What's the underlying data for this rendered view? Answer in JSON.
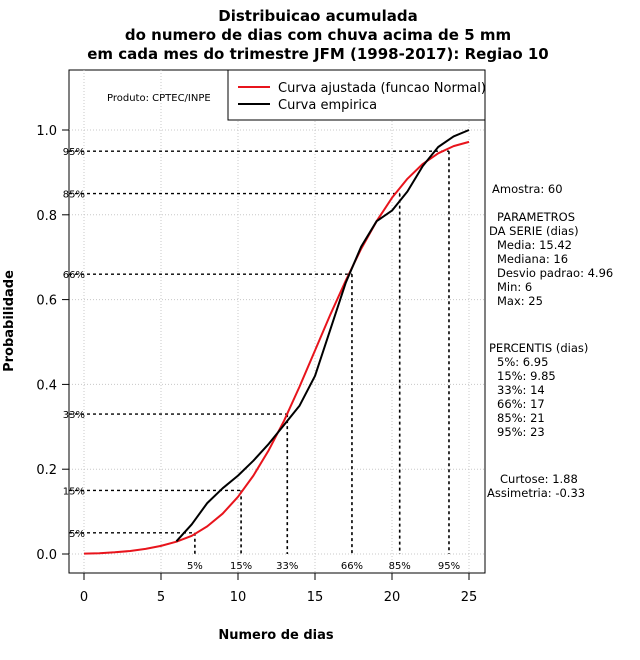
{
  "chart_data": {
    "type": "line",
    "title": [
      "Distribuicao acumulada",
      "do numero de dias com chuva acima de 5 mm",
      "em cada mes do trimestre JFM (1998-2017): Regiao 10"
    ],
    "xlabel": "Numero de dias",
    "ylabel": "Probabilidade",
    "xlim": [
      -1,
      26
    ],
    "ylim": [
      -0.04,
      1.14
    ],
    "xticks": [
      0,
      5,
      10,
      15,
      20,
      25
    ],
    "yticks": [
      0.0,
      0.2,
      0.4,
      0.6,
      0.8,
      1.0
    ],
    "xtick_labels": [
      "0",
      "5",
      "10",
      "15",
      "20",
      "25"
    ],
    "ytick_labels": [
      "0.0",
      "0.2",
      "0.4",
      "0.6",
      "0.8",
      "1.0"
    ],
    "grid": true,
    "legend_position": "top-right",
    "credit": "Produto: CPTEC/INPE",
    "series": [
      {
        "name": "Curva ajustada (funcao Normal)",
        "color": "#e8141c",
        "x": [
          0,
          1,
          2,
          3,
          4,
          5,
          6,
          7,
          8,
          9,
          10,
          11,
          12,
          13,
          14,
          15,
          16,
          17,
          18,
          19,
          20,
          21,
          22,
          23,
          24,
          25
        ],
        "y": [
          0.001,
          0.002,
          0.004,
          0.007,
          0.012,
          0.019,
          0.029,
          0.043,
          0.065,
          0.095,
          0.135,
          0.185,
          0.245,
          0.315,
          0.395,
          0.48,
          0.565,
          0.645,
          0.72,
          0.785,
          0.84,
          0.885,
          0.92,
          0.945,
          0.962,
          0.972
        ]
      },
      {
        "name": "Curva empirica",
        "color": "#000000",
        "x": [
          6,
          7,
          8,
          9,
          10,
          11,
          12,
          13,
          14,
          15,
          16,
          17,
          18,
          19,
          20,
          21,
          22,
          23,
          24,
          25
        ],
        "y": [
          0.03,
          0.07,
          0.12,
          0.155,
          0.185,
          0.22,
          0.26,
          0.305,
          0.35,
          0.42,
          0.53,
          0.64,
          0.725,
          0.785,
          0.81,
          0.855,
          0.915,
          0.96,
          0.985,
          1.0
        ]
      }
    ],
    "percentile_lines": [
      {
        "label": "5%",
        "p": 0.05,
        "x": 7.2
      },
      {
        "label": "15%",
        "p": 0.15,
        "x": 10.2
      },
      {
        "label": "33%",
        "p": 0.33,
        "x": 13.2
      },
      {
        "label": "66%",
        "p": 0.66,
        "x": 17.4
      },
      {
        "label": "85%",
        "p": 0.85,
        "x": 20.5
      },
      {
        "label": "95%",
        "p": 0.95,
        "x": 23.7
      }
    ],
    "stats_lines": [
      "Amostra: 60",
      "PARAMETROS",
      "DA SERIE (dias)",
      "Media: 15.42",
      "Mediana: 16",
      "Desvio padrao: 4.96",
      "Min: 6",
      "Max: 25",
      "PERCENTIS (dias)",
      "5%: 6.95",
      "15%: 9.85",
      "33%: 14",
      "66%: 17",
      "85%: 21",
      "95%: 23",
      "Curtose: 1.88",
      "Assimetria: -0.33"
    ]
  }
}
